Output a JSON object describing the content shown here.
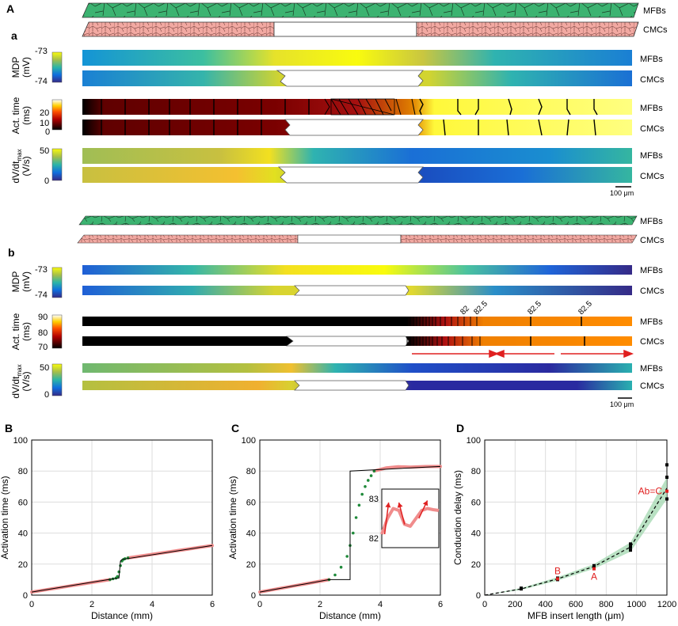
{
  "colors": {
    "mfb_green": "#3cb371",
    "cmc_pink": "#f2a9a2",
    "marker_green": "#1f8a3a",
    "line_pink": "#f08c8c",
    "red": "#e02020",
    "shade": "#a7d9b4"
  },
  "panels": {
    "A": "A",
    "a": "a",
    "b": "b",
    "B": "B",
    "C": "C",
    "D": "D"
  },
  "tissue": {
    "mfbs": "MFBs",
    "cmcs": "CMCs"
  },
  "panel_a": {
    "mdp": {
      "label": "MDP",
      "unit": "(mV)",
      "max": "-73",
      "min": "-74"
    },
    "act": {
      "label": "Act. time",
      "unit": "(ms)",
      "ticks": [
        "20",
        "10",
        "0"
      ]
    },
    "dvdt": {
      "label": "dV/dt",
      "sub": "max",
      "unit": "(V/s)",
      "ticks": [
        "50",
        "0"
      ]
    },
    "scale": "100 μm"
  },
  "panel_b": {
    "mdp": {
      "label": "MDP",
      "unit": "(mV)",
      "max": "-73",
      "min": "-74"
    },
    "act": {
      "label": "Act. time",
      "unit": "(ms)",
      "ticks": [
        "90",
        "80",
        "70"
      ]
    },
    "dvdt": {
      "label": "dV/dt",
      "sub": "max",
      "unit": "(V/s)",
      "ticks": [
        "50",
        "0"
      ]
    },
    "isochrone_labels": [
      "82",
      "82.5",
      "82.5",
      "82.5"
    ],
    "scale": "100 μm"
  },
  "chart_data": [
    {
      "id": "B",
      "type": "line",
      "xlabel": "Distance (mm)",
      "ylabel": "Activation time (ms)",
      "xlim": [
        0,
        6
      ],
      "ylim": [
        0,
        100
      ],
      "xticks": [
        "0",
        "2",
        "4",
        "6"
      ],
      "yticks": [
        "0",
        "20",
        "40",
        "60",
        "80",
        "100"
      ],
      "series": [
        {
          "name": "CMC activation",
          "style": "pink",
          "x": [
            0,
            2.6
          ],
          "y": [
            2,
            10
          ]
        },
        {
          "name": "CMC activation right",
          "style": "pink",
          "x": [
            3.2,
            6
          ],
          "y": [
            24,
            32
          ]
        },
        {
          "name": "MFB activation",
          "style": "greenmarkers",
          "x": [
            2.6,
            2.7,
            2.8,
            2.85,
            2.9,
            2.95,
            3.0,
            3.05,
            3.1,
            3.2
          ],
          "y": [
            10,
            10.5,
            11,
            12,
            15,
            19,
            22,
            23,
            23.5,
            24
          ]
        },
        {
          "name": "fit",
          "style": "black",
          "x": [
            0,
            2.7,
            2.9,
            2.95,
            3.0,
            6
          ],
          "y": [
            2,
            10.5,
            11,
            22,
            23,
            32
          ]
        }
      ]
    },
    {
      "id": "C",
      "type": "line",
      "xlabel": "Distance (mm)",
      "ylabel": "Activation time (ms)",
      "xlim": [
        0,
        6
      ],
      "ylim": [
        0,
        100
      ],
      "xticks": [
        "0",
        "2",
        "4",
        "6"
      ],
      "yticks": [
        "0",
        "20",
        "40",
        "60",
        "80",
        "100"
      ],
      "series": [
        {
          "name": "CMC activation",
          "style": "pink",
          "x": [
            0,
            2.3
          ],
          "y": [
            2,
            10
          ]
        },
        {
          "name": "CMC activation right",
          "style": "pink",
          "x": [
            3.8,
            4.2,
            4.6,
            5.0,
            5.5,
            6
          ],
          "y": [
            80,
            82,
            82.8,
            82.5,
            82.9,
            83
          ]
        },
        {
          "name": "MFB activation",
          "style": "greenmarkers",
          "x": [
            2.3,
            2.5,
            2.7,
            2.9,
            3.0,
            3.1,
            3.2,
            3.3,
            3.4,
            3.5,
            3.6,
            3.7,
            3.8
          ],
          "y": [
            10,
            13,
            18,
            25,
            32,
            40,
            50,
            58,
            65,
            70,
            74,
            77,
            80
          ]
        },
        {
          "name": "fit",
          "style": "black",
          "x": [
            0,
            2.3,
            3.0,
            3.0,
            3.0,
            6
          ],
          "y": [
            2,
            10,
            10,
            80,
            80,
            83
          ]
        }
      ],
      "inset": {
        "yticks": [
          "83",
          "82"
        ],
        "ylim": [
          82,
          83
        ],
        "x": [
          0,
          0.1,
          0.2,
          0.3,
          0.4,
          0.5,
          0.6,
          0.7,
          0.8,
          0.9,
          1.0
        ],
        "y": [
          82.1,
          82.5,
          82.75,
          82.7,
          82.35,
          82.3,
          82.5,
          82.7,
          82.75,
          82.72,
          82.7
        ]
      }
    },
    {
      "id": "D",
      "type": "scatter",
      "xlabel": "MFB insert length (μm)",
      "ylabel": "Conduction delay (ms)",
      "xlim": [
        0,
        1200
      ],
      "ylim": [
        0,
        100
      ],
      "xticks": [
        "0",
        "200",
        "400",
        "600",
        "800",
        "1000",
        "1200"
      ],
      "yticks": [
        "0",
        "20",
        "40",
        "60",
        "80",
        "100"
      ],
      "points": [
        {
          "x": 240,
          "y": 4
        },
        {
          "x": 240,
          "y": 4.5
        },
        {
          "x": 480,
          "y": 10
        },
        {
          "x": 480,
          "y": 11
        },
        {
          "x": 720,
          "y": 18
        },
        {
          "x": 720,
          "y": 19
        },
        {
          "x": 960,
          "y": 29
        },
        {
          "x": 960,
          "y": 31
        },
        {
          "x": 960,
          "y": 33
        },
        {
          "x": 1200,
          "y": 62
        },
        {
          "x": 1200,
          "y": 76
        },
        {
          "x": 1200,
          "y": 84
        }
      ],
      "fit_x": [
        0,
        240,
        480,
        720,
        960,
        1200
      ],
      "fit_y": [
        0,
        4,
        10.5,
        18.5,
        31,
        69
      ],
      "band_hi": [
        0,
        4.6,
        11.6,
        20,
        34,
        76
      ],
      "band_lo": [
        0,
        3.4,
        9.4,
        17,
        28,
        62
      ],
      "annotations": [
        {
          "text": "B",
          "x": 480,
          "y": 10.5
        },
        {
          "text": "A",
          "x": 720,
          "y": 17
        },
        {
          "text": "Ab=C",
          "x": 1200,
          "y": 67
        }
      ]
    }
  ]
}
